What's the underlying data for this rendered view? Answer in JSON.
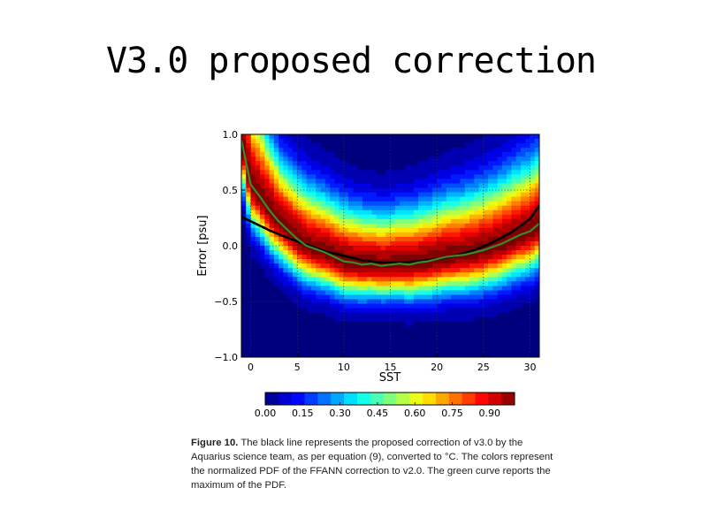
{
  "slide": {
    "title": "V3.0 proposed correction"
  },
  "chart_data": {
    "type": "heatmap",
    "xlabel": "SST",
    "ylabel": "Error [psu]",
    "xlim": [
      -1,
      31
    ],
    "ylim": [
      -1.0,
      1.0
    ],
    "x_ticks": [
      "0",
      "5",
      "10",
      "15",
      "20",
      "25",
      "30"
    ],
    "y_ticks": [
      "1.0",
      "0.5",
      "0.0",
      "−0.5",
      "−1.0"
    ],
    "grid": true,
    "colorbar": {
      "ticks": [
        "0.00",
        "0.15",
        "0.30",
        "0.45",
        "0.60",
        "0.75",
        "0.90"
      ],
      "range": [
        0,
        1
      ],
      "colormap": [
        "#00007f",
        "#0000ff",
        "#007fff",
        "#00ffff",
        "#7fff7f",
        "#ffff00",
        "#ff7f00",
        "#ff0000",
        "#7f0000"
      ]
    },
    "series": [
      {
        "color": "#000000",
        "x": [
          -1,
          0,
          2,
          4,
          6,
          8,
          10,
          12,
          14,
          16,
          18,
          20,
          22,
          24,
          26,
          28,
          30,
          31
        ],
        "y": [
          0.26,
          0.22,
          0.14,
          0.07,
          0.01,
          -0.05,
          -0.09,
          -0.13,
          -0.15,
          -0.15,
          -0.14,
          -0.12,
          -0.09,
          -0.04,
          0.03,
          0.12,
          0.24,
          0.36
        ]
      },
      {
        "color": "#3a8a2a",
        "x": [
          -1,
          -0.5,
          0,
          1,
          2,
          3,
          4,
          5,
          6,
          7,
          8,
          9,
          10,
          11,
          12,
          13,
          14,
          15,
          16,
          17,
          18,
          19,
          20,
          21,
          22,
          23,
          24,
          25,
          26,
          27,
          28,
          29,
          30,
          31
        ],
        "y": [
          0.95,
          0.75,
          0.55,
          0.44,
          0.32,
          0.22,
          0.14,
          0.06,
          0.0,
          -0.03,
          -0.06,
          -0.1,
          -0.14,
          -0.15,
          -0.17,
          -0.16,
          -0.18,
          -0.17,
          -0.16,
          -0.17,
          -0.15,
          -0.14,
          -0.12,
          -0.1,
          -0.09,
          -0.08,
          -0.06,
          -0.04,
          -0.01,
          0.02,
          0.06,
          0.1,
          0.13,
          0.2
        ]
      }
    ]
  },
  "caption": {
    "label": "Figure 10.",
    "text": "The black line represents the proposed correction of v3.0 by the Aquarius science team, as per equation (9), converted to °C. The colors represent the normalized PDF of the FFANN correction to v2.0. The green curve reports the maximum of the PDF."
  }
}
